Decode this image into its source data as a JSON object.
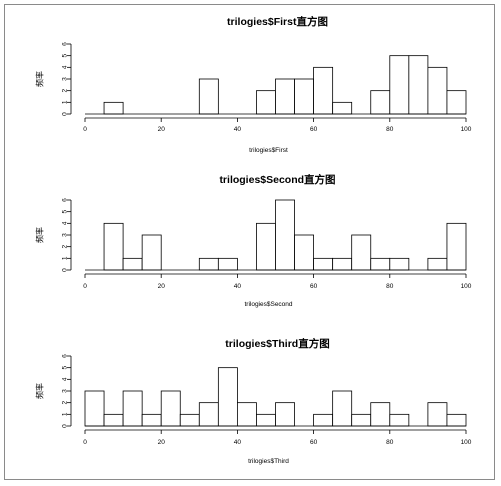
{
  "chart_data": [
    {
      "type": "bar",
      "title": "trilogies$First直方图",
      "xlabel": "trilogies$First",
      "ylabel": "频率",
      "bin_edges": [
        0,
        5,
        10,
        15,
        20,
        25,
        30,
        35,
        40,
        45,
        50,
        55,
        60,
        65,
        70,
        75,
        80,
        85,
        90,
        95,
        100
      ],
      "values": [
        0,
        1,
        0,
        0,
        0,
        0,
        3,
        0,
        0,
        2,
        3,
        3,
        4,
        1,
        0,
        2,
        5,
        5,
        4,
        2
      ],
      "xlim": [
        0,
        100
      ],
      "ylim": [
        0,
        6
      ],
      "x_ticks": [
        "0",
        "20",
        "40",
        "60",
        "80",
        "100"
      ],
      "y_ticks": [
        "0",
        "1",
        "2",
        "3",
        "4",
        "5",
        "6"
      ]
    },
    {
      "type": "bar",
      "title": "trilogies$Second直方图",
      "xlabel": "trilogies$Second",
      "ylabel": "频率",
      "bin_edges": [
        0,
        5,
        10,
        15,
        20,
        25,
        30,
        35,
        40,
        45,
        50,
        55,
        60,
        65,
        70,
        75,
        80,
        85,
        90,
        95,
        100
      ],
      "values": [
        0,
        4,
        1,
        3,
        0,
        0,
        1,
        1,
        0,
        4,
        6,
        3,
        1,
        1,
        3,
        1,
        1,
        0,
        1,
        4
      ],
      "xlim": [
        0,
        100
      ],
      "ylim": [
        0,
        6
      ],
      "x_ticks": [
        "0",
        "20",
        "40",
        "60",
        "80",
        "100"
      ],
      "y_ticks": [
        "0",
        "1",
        "2",
        "3",
        "4",
        "5",
        "6"
      ]
    },
    {
      "type": "bar",
      "title": "trilogies$Third直方图",
      "xlabel": "trilogies$Third",
      "ylabel": "频率",
      "bin_edges": [
        0,
        5,
        10,
        15,
        20,
        25,
        30,
        35,
        40,
        45,
        50,
        55,
        60,
        65,
        70,
        75,
        80,
        85,
        90,
        95,
        100
      ],
      "values": [
        3,
        1,
        3,
        1,
        3,
        1,
        2,
        5,
        2,
        1,
        2,
        0,
        1,
        3,
        1,
        2,
        1,
        0,
        2,
        1
      ],
      "xlim": [
        0,
        100
      ],
      "ylim": [
        0,
        6
      ],
      "x_ticks": [
        "0",
        "20",
        "40",
        "60",
        "80",
        "100"
      ],
      "y_ticks": [
        "0",
        "1",
        "2",
        "3",
        "4",
        "5",
        "6"
      ]
    }
  ]
}
